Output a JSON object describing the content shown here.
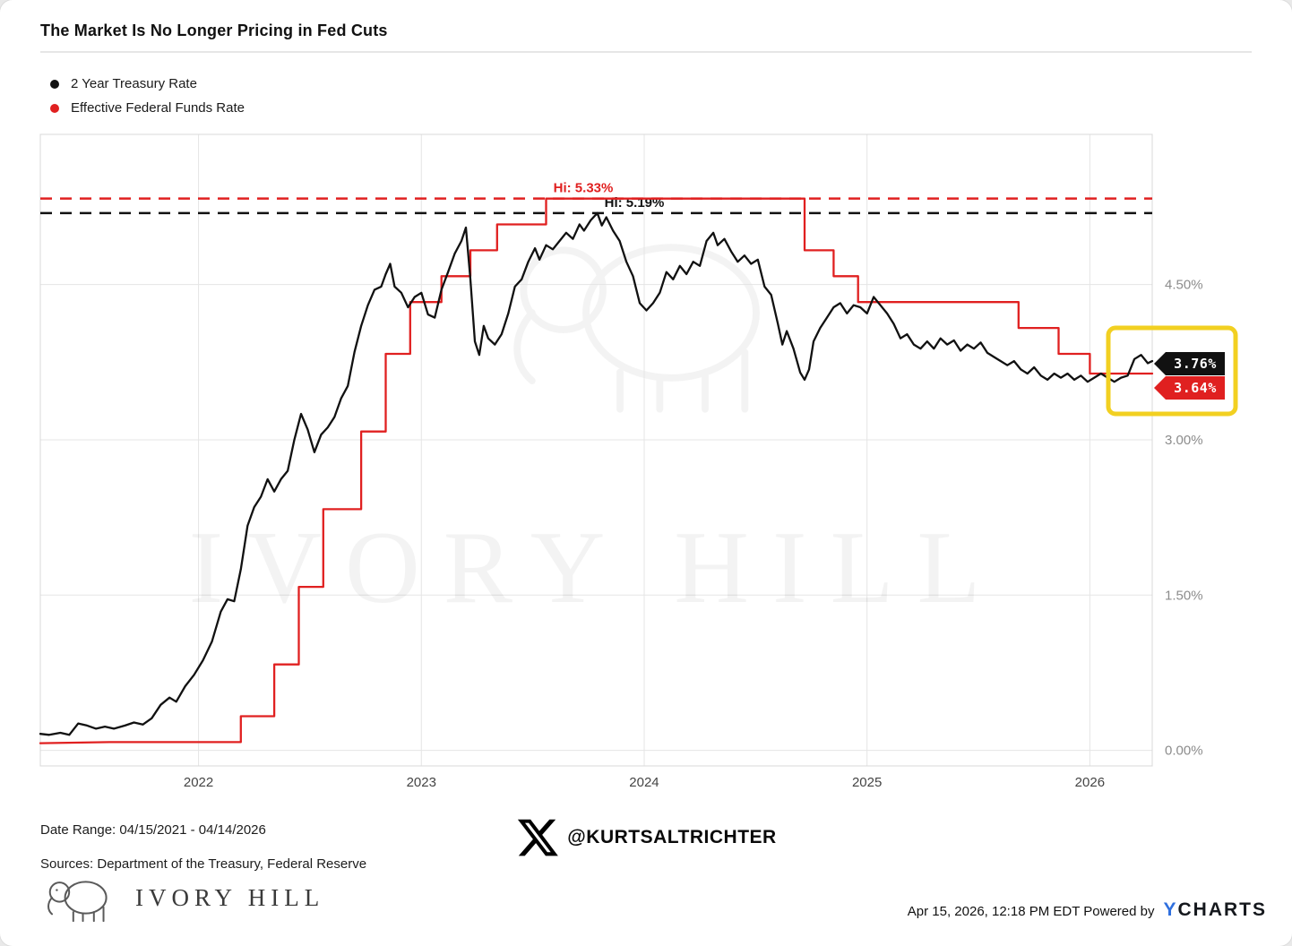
{
  "title": "The Market Is No Longer Pricing in Fed Cuts",
  "legend": [
    {
      "label": "2 Year Treasury Rate",
      "color": "#111111"
    },
    {
      "label": "Effective Federal Funds Rate",
      "color": "#e02020"
    }
  ],
  "footer": {
    "date_range": "Date Range: 04/15/2021 - 04/14/2026",
    "sources": "Sources: Department of the Treasury, Federal Reserve",
    "brand": "IVORY HILL",
    "handle": "@KURTSALTRICHTER",
    "timestamp": "Apr 15, 2026, 12:18 PM EDT Powered by",
    "ycharts_mark": "Y",
    "ycharts_name": "CHARTS"
  },
  "chart_data": {
    "type": "line",
    "title": "The Market Is No Longer Pricing in Fed Cuts",
    "watermark": "IVORY HILL",
    "x_range": [
      2021.29,
      2026.28
    ],
    "y_axis_range": [
      -0.15,
      5.95
    ],
    "x_ticks": [
      2022,
      2023,
      2024,
      2025,
      2026
    ],
    "x_tick_labels": [
      "2022",
      "2023",
      "2024",
      "2025",
      "2026"
    ],
    "y_ticks": [
      0,
      1.5,
      3.0,
      4.5
    ],
    "y_tick_labels": [
      "0.00%",
      "1.50%",
      "3.00%",
      "4.50%"
    ],
    "grid": true,
    "legend_position": "top-left",
    "highlight_color": "#f2d021",
    "hi_lines": [
      {
        "label": "Hi: 5.33%",
        "value": 5.33,
        "color": "#e02020"
      },
      {
        "label": "Hi: 5.19%",
        "value": 5.19,
        "color": "#111111"
      }
    ],
    "end_labels": [
      {
        "label": "3.76%",
        "value": 3.76,
        "color": "#111111"
      },
      {
        "label": "3.64%",
        "value": 3.64,
        "color": "#e02020"
      }
    ],
    "series": [
      {
        "name": "2 Year Treasury Rate",
        "color": "#111111",
        "points": [
          [
            2021.29,
            0.16
          ],
          [
            2021.33,
            0.15
          ],
          [
            2021.38,
            0.17
          ],
          [
            2021.42,
            0.15
          ],
          [
            2021.46,
            0.26
          ],
          [
            2021.5,
            0.24
          ],
          [
            2021.54,
            0.21
          ],
          [
            2021.58,
            0.23
          ],
          [
            2021.62,
            0.21
          ],
          [
            2021.67,
            0.24
          ],
          [
            2021.71,
            0.27
          ],
          [
            2021.75,
            0.25
          ],
          [
            2021.79,
            0.31
          ],
          [
            2021.83,
            0.44
          ],
          [
            2021.87,
            0.51
          ],
          [
            2021.9,
            0.47
          ],
          [
            2021.94,
            0.62
          ],
          [
            2021.98,
            0.73
          ],
          [
            2022.02,
            0.87
          ],
          [
            2022.06,
            1.05
          ],
          [
            2022.1,
            1.34
          ],
          [
            2022.13,
            1.46
          ],
          [
            2022.16,
            1.44
          ],
          [
            2022.19,
            1.75
          ],
          [
            2022.22,
            2.17
          ],
          [
            2022.25,
            2.35
          ],
          [
            2022.28,
            2.45
          ],
          [
            2022.31,
            2.62
          ],
          [
            2022.34,
            2.5
          ],
          [
            2022.37,
            2.62
          ],
          [
            2022.4,
            2.7
          ],
          [
            2022.43,
            3.0
          ],
          [
            2022.46,
            3.25
          ],
          [
            2022.49,
            3.1
          ],
          [
            2022.52,
            2.88
          ],
          [
            2022.55,
            3.05
          ],
          [
            2022.58,
            3.12
          ],
          [
            2022.61,
            3.22
          ],
          [
            2022.64,
            3.4
          ],
          [
            2022.67,
            3.52
          ],
          [
            2022.7,
            3.85
          ],
          [
            2022.73,
            4.1
          ],
          [
            2022.76,
            4.3
          ],
          [
            2022.79,
            4.45
          ],
          [
            2022.82,
            4.48
          ],
          [
            2022.84,
            4.6
          ],
          [
            2022.86,
            4.7
          ],
          [
            2022.88,
            4.48
          ],
          [
            2022.91,
            4.42
          ],
          [
            2022.94,
            4.28
          ],
          [
            2022.97,
            4.38
          ],
          [
            2023.0,
            4.42
          ],
          [
            2023.03,
            4.21
          ],
          [
            2023.06,
            4.18
          ],
          [
            2023.09,
            4.45
          ],
          [
            2023.12,
            4.62
          ],
          [
            2023.15,
            4.8
          ],
          [
            2023.18,
            4.92
          ],
          [
            2023.2,
            5.05
          ],
          [
            2023.22,
            4.55
          ],
          [
            2023.24,
            3.95
          ],
          [
            2023.26,
            3.82
          ],
          [
            2023.28,
            4.1
          ],
          [
            2023.3,
            3.98
          ],
          [
            2023.33,
            3.92
          ],
          [
            2023.36,
            4.02
          ],
          [
            2023.39,
            4.22
          ],
          [
            2023.42,
            4.48
          ],
          [
            2023.45,
            4.55
          ],
          [
            2023.48,
            4.72
          ],
          [
            2023.51,
            4.85
          ],
          [
            2023.53,
            4.74
          ],
          [
            2023.56,
            4.88
          ],
          [
            2023.59,
            4.84
          ],
          [
            2023.62,
            4.92
          ],
          [
            2023.65,
            5.0
          ],
          [
            2023.68,
            4.94
          ],
          [
            2023.71,
            5.08
          ],
          [
            2023.73,
            5.02
          ],
          [
            2023.76,
            5.12
          ],
          [
            2023.79,
            5.19
          ],
          [
            2023.81,
            5.07
          ],
          [
            2023.83,
            5.15
          ],
          [
            2023.86,
            5.02
          ],
          [
            2023.89,
            4.92
          ],
          [
            2023.92,
            4.72
          ],
          [
            2023.95,
            4.58
          ],
          [
            2023.98,
            4.32
          ],
          [
            2024.01,
            4.25
          ],
          [
            2024.04,
            4.32
          ],
          [
            2024.07,
            4.42
          ],
          [
            2024.1,
            4.62
          ],
          [
            2024.13,
            4.55
          ],
          [
            2024.16,
            4.68
          ],
          [
            2024.19,
            4.6
          ],
          [
            2024.22,
            4.72
          ],
          [
            2024.25,
            4.68
          ],
          [
            2024.28,
            4.92
          ],
          [
            2024.31,
            5.0
          ],
          [
            2024.33,
            4.88
          ],
          [
            2024.36,
            4.94
          ],
          [
            2024.39,
            4.82
          ],
          [
            2024.42,
            4.72
          ],
          [
            2024.45,
            4.78
          ],
          [
            2024.48,
            4.7
          ],
          [
            2024.51,
            4.74
          ],
          [
            2024.54,
            4.48
          ],
          [
            2024.57,
            4.4
          ],
          [
            2024.6,
            4.12
          ],
          [
            2024.62,
            3.92
          ],
          [
            2024.64,
            4.05
          ],
          [
            2024.67,
            3.88
          ],
          [
            2024.7,
            3.65
          ],
          [
            2024.72,
            3.58
          ],
          [
            2024.74,
            3.68
          ],
          [
            2024.76,
            3.95
          ],
          [
            2024.79,
            4.08
          ],
          [
            2024.82,
            4.18
          ],
          [
            2024.85,
            4.28
          ],
          [
            2024.88,
            4.32
          ],
          [
            2024.91,
            4.22
          ],
          [
            2024.94,
            4.3
          ],
          [
            2024.97,
            4.28
          ],
          [
            2025.0,
            4.22
          ],
          [
            2025.03,
            4.38
          ],
          [
            2025.06,
            4.3
          ],
          [
            2025.09,
            4.22
          ],
          [
            2025.12,
            4.12
          ],
          [
            2025.15,
            3.98
          ],
          [
            2025.18,
            4.02
          ],
          [
            2025.21,
            3.92
          ],
          [
            2025.24,
            3.88
          ],
          [
            2025.27,
            3.95
          ],
          [
            2025.3,
            3.88
          ],
          [
            2025.33,
            3.98
          ],
          [
            2025.36,
            3.92
          ],
          [
            2025.39,
            3.96
          ],
          [
            2025.42,
            3.86
          ],
          [
            2025.45,
            3.92
          ],
          [
            2025.48,
            3.88
          ],
          [
            2025.51,
            3.94
          ],
          [
            2025.54,
            3.84
          ],
          [
            2025.57,
            3.8
          ],
          [
            2025.6,
            3.76
          ],
          [
            2025.63,
            3.72
          ],
          [
            2025.66,
            3.76
          ],
          [
            2025.69,
            3.68
          ],
          [
            2025.72,
            3.64
          ],
          [
            2025.75,
            3.7
          ],
          [
            2025.78,
            3.62
          ],
          [
            2025.81,
            3.58
          ],
          [
            2025.84,
            3.64
          ],
          [
            2025.87,
            3.6
          ],
          [
            2025.9,
            3.64
          ],
          [
            2025.93,
            3.58
          ],
          [
            2025.96,
            3.62
          ],
          [
            2025.99,
            3.56
          ],
          [
            2026.02,
            3.6
          ],
          [
            2026.05,
            3.64
          ],
          [
            2026.08,
            3.6
          ],
          [
            2026.11,
            3.56
          ],
          [
            2026.14,
            3.6
          ],
          [
            2026.17,
            3.62
          ],
          [
            2026.2,
            3.78
          ],
          [
            2026.23,
            3.82
          ],
          [
            2026.26,
            3.74
          ],
          [
            2026.28,
            3.76
          ]
        ]
      },
      {
        "name": "Effective Federal Funds Rate",
        "color": "#e02020",
        "points": [
          [
            2021.29,
            0.07
          ],
          [
            2021.6,
            0.08
          ],
          [
            2021.9,
            0.08
          ],
          [
            2022.19,
            0.08
          ],
          [
            2022.19,
            0.33
          ],
          [
            2022.34,
            0.33
          ],
          [
            2022.34,
            0.83
          ],
          [
            2022.45,
            0.83
          ],
          [
            2022.45,
            1.58
          ],
          [
            2022.56,
            1.58
          ],
          [
            2022.56,
            2.33
          ],
          [
            2022.73,
            2.33
          ],
          [
            2022.73,
            3.08
          ],
          [
            2022.84,
            3.08
          ],
          [
            2022.84,
            3.83
          ],
          [
            2022.95,
            3.83
          ],
          [
            2022.95,
            4.33
          ],
          [
            2023.09,
            4.33
          ],
          [
            2023.09,
            4.58
          ],
          [
            2023.22,
            4.58
          ],
          [
            2023.22,
            4.83
          ],
          [
            2023.34,
            4.83
          ],
          [
            2023.34,
            5.08
          ],
          [
            2023.56,
            5.08
          ],
          [
            2023.56,
            5.33
          ],
          [
            2024.72,
            5.33
          ],
          [
            2024.72,
            4.83
          ],
          [
            2024.85,
            4.83
          ],
          [
            2024.85,
            4.58
          ],
          [
            2024.96,
            4.58
          ],
          [
            2024.96,
            4.33
          ],
          [
            2025.68,
            4.33
          ],
          [
            2025.68,
            4.08
          ],
          [
            2025.86,
            4.08
          ],
          [
            2025.86,
            3.83
          ],
          [
            2026.0,
            3.83
          ],
          [
            2026.0,
            3.64
          ],
          [
            2026.28,
            3.64
          ]
        ]
      }
    ]
  }
}
